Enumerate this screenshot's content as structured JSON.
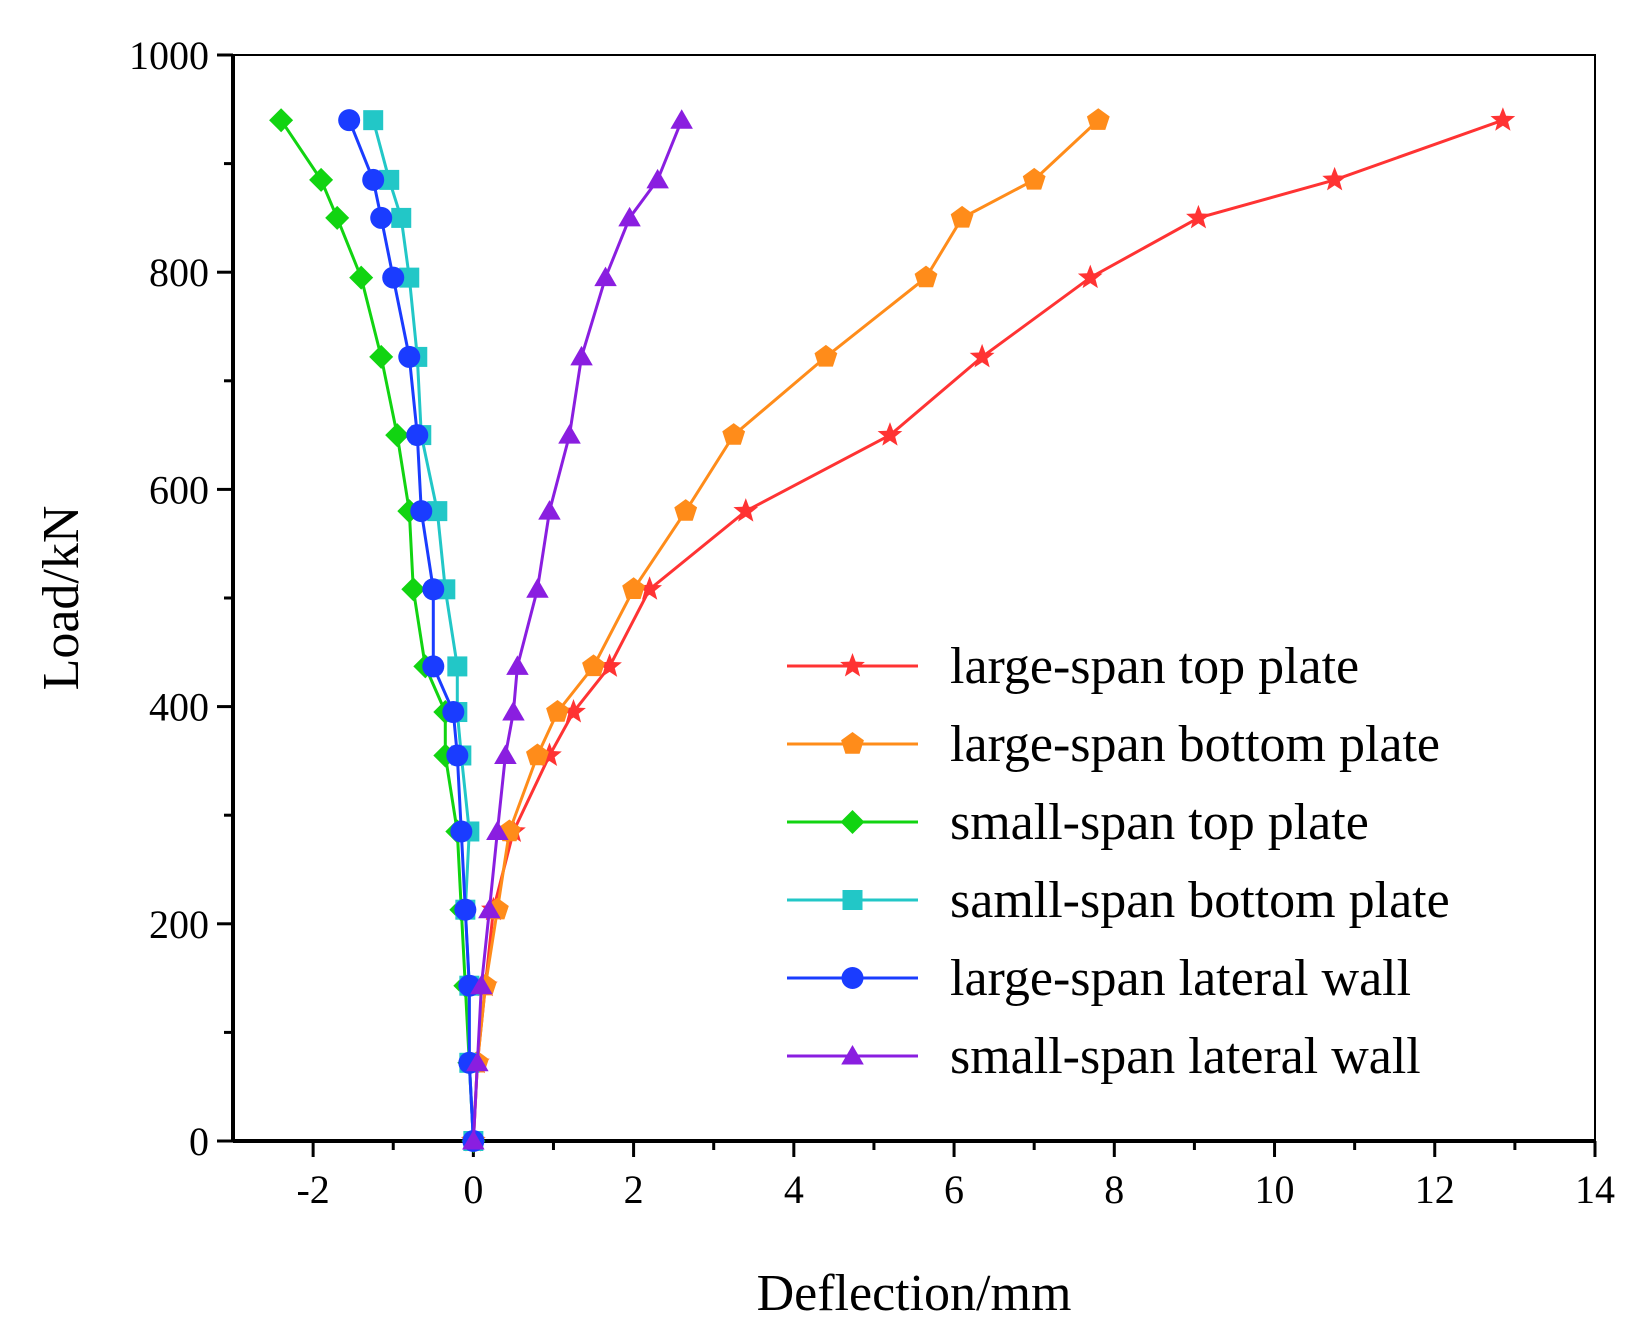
{
  "chart_data": {
    "type": "line",
    "title": "",
    "xlabel": "Deflection/mm",
    "ylabel": "Load/kN",
    "xlim": [
      -3,
      14
    ],
    "ylim": [
      0,
      1000
    ],
    "xticks": [
      -2,
      0,
      2,
      4,
      6,
      8,
      10,
      12,
      14
    ],
    "yticks": [
      0,
      200,
      400,
      600,
      800,
      1000
    ],
    "xtick_labels": [
      "-2",
      "0",
      "2",
      "4",
      "6",
      "8",
      "10",
      "12",
      "14"
    ],
    "ytick_labels": [
      "0",
      "200",
      "400",
      "600",
      "800",
      "1000"
    ],
    "legend_position": "bottom-right",
    "grid": false,
    "series": [
      {
        "name": "large-span top plate",
        "color": "#ff3333",
        "marker": "star",
        "x": [
          0,
          0.05,
          0.15,
          0.25,
          0.5,
          0.95,
          1.25,
          1.7,
          2.2,
          3.4,
          5.2,
          6.35,
          7.7,
          9.05,
          10.75,
          12.85
        ],
        "y": [
          0,
          72,
          143,
          213,
          285,
          355,
          395,
          437,
          508,
          580,
          650,
          722,
          795,
          850,
          885,
          940
        ]
      },
      {
        "name": "large-span bottom plate",
        "color": "#ff8c1a",
        "marker": "pentagon",
        "x": [
          0,
          0.05,
          0.15,
          0.3,
          0.45,
          0.8,
          1.05,
          1.5,
          2.0,
          2.65,
          3.25,
          4.4,
          5.65,
          6.1,
          7.0,
          7.8
        ],
        "y": [
          0,
          72,
          143,
          213,
          285,
          355,
          395,
          437,
          508,
          580,
          650,
          722,
          795,
          850,
          885,
          940
        ]
      },
      {
        "name": "small-span top plate",
        "color": "#11d411",
        "marker": "diamond",
        "x": [
          0,
          -0.05,
          -0.1,
          -0.15,
          -0.2,
          -0.35,
          -0.35,
          -0.6,
          -0.75,
          -0.8,
          -0.95,
          -1.15,
          -1.4,
          -1.7,
          -1.9,
          -2.4
        ],
        "y": [
          0,
          72,
          143,
          213,
          285,
          355,
          395,
          437,
          508,
          580,
          650,
          722,
          795,
          850,
          885,
          940
        ]
      },
      {
        "name": "samll-span bottom plate",
        "color": "#22c7c7",
        "marker": "square",
        "x": [
          0,
          -0.05,
          -0.05,
          -0.1,
          -0.05,
          -0.15,
          -0.2,
          -0.2,
          -0.35,
          -0.45,
          -0.65,
          -0.7,
          -0.8,
          -0.9,
          -1.05,
          -1.25
        ],
        "y": [
          0,
          72,
          143,
          213,
          285,
          355,
          395,
          437,
          508,
          580,
          650,
          722,
          795,
          850,
          885,
          940
        ]
      },
      {
        "name": "large-span lateral wall",
        "color": "#1a3cff",
        "marker": "circle",
        "x": [
          0,
          -0.05,
          -0.05,
          -0.1,
          -0.15,
          -0.2,
          -0.25,
          -0.5,
          -0.5,
          -0.65,
          -0.7,
          -0.8,
          -1.0,
          -1.15,
          -1.25,
          -1.55
        ],
        "y": [
          0,
          72,
          143,
          213,
          285,
          355,
          395,
          437,
          508,
          580,
          650,
          722,
          795,
          850,
          885,
          940
        ]
      },
      {
        "name": "small-span lateral wall",
        "color": "#8a1ee0",
        "marker": "triangle",
        "x": [
          0,
          0.05,
          0.1,
          0.2,
          0.3,
          0.4,
          0.5,
          0.55,
          0.8,
          0.95,
          1.2,
          1.35,
          1.65,
          1.95,
          2.3,
          2.6
        ],
        "y": [
          0,
          72,
          143,
          213,
          285,
          355,
          395,
          437,
          508,
          580,
          650,
          722,
          795,
          850,
          885,
          940
        ]
      }
    ]
  }
}
